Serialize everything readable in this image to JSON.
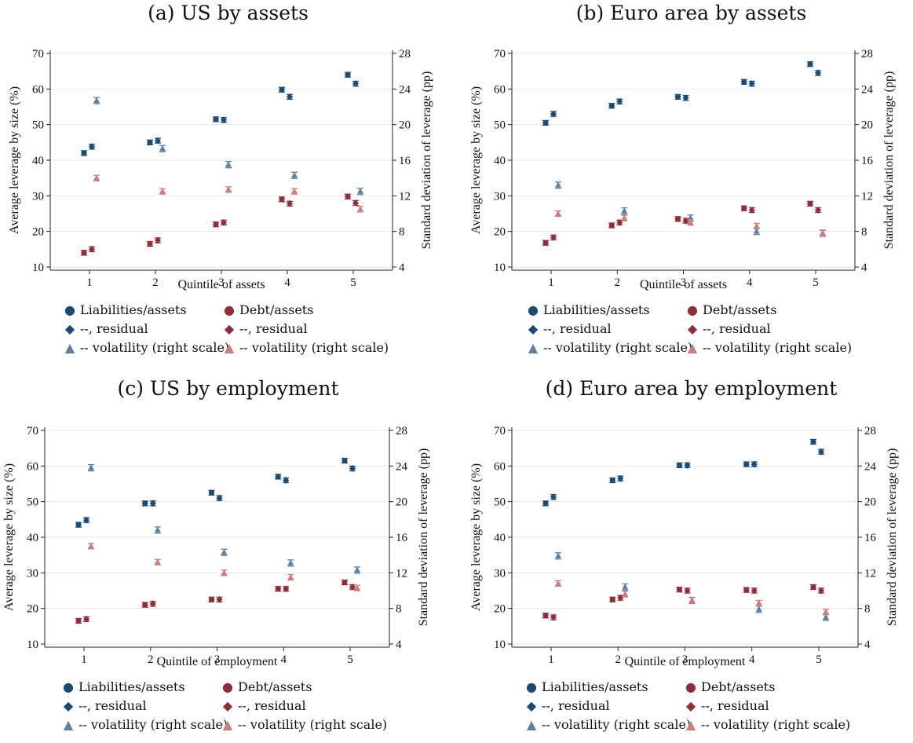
{
  "colors": {
    "liabilities": "#1c4a73",
    "debt": "#8f2d38",
    "liabilities_vol": "#5f7ea0",
    "debt_vol": "#cc7e7e"
  },
  "legend": {
    "liab": "Liabilities/assets",
    "debt": "Debt/assets",
    "liab_res": "--, residual",
    "debt_res": "--, residual",
    "liab_vol": "-- volatility (right scale)",
    "debt_vol": "-- volatility (right scale)"
  },
  "chart_data": [
    {
      "type": "scatter",
      "title": "(a) US by assets",
      "xlabel": "Quintile of assets",
      "ylabel": "Average leverage by size (%)",
      "y2label": "Standard deviation of leverage (pp)",
      "x": [
        1,
        2,
        3,
        4,
        5
      ],
      "ylim": [
        10,
        70
      ],
      "yticks": [
        10,
        20,
        30,
        40,
        50,
        60,
        70
      ],
      "y2lim": [
        4,
        28
      ],
      "y2ticks": [
        4,
        8,
        12,
        16,
        20,
        24,
        28
      ],
      "grid": true,
      "legend_placement": "below",
      "series": [
        {
          "name": "Liabilities/assets",
          "axis": "left",
          "values": [
            42.0,
            45.0,
            51.5,
            59.8,
            64.0
          ]
        },
        {
          "name": "--, residual",
          "axis": "left",
          "values": [
            43.8,
            45.5,
            51.3,
            57.8,
            61.5
          ]
        },
        {
          "name": "-- volatility (right scale)",
          "axis": "right",
          "values": [
            22.7,
            17.3,
            15.5,
            14.3,
            12.5
          ]
        },
        {
          "name": "Debt/assets",
          "axis": "left",
          "values": [
            14.0,
            16.5,
            22.0,
            29.0,
            29.8
          ]
        },
        {
          "name": "--, residual",
          "axis": "left",
          "values": [
            15.0,
            17.5,
            22.5,
            27.8,
            28.0
          ]
        },
        {
          "name": "-- volatility (right scale)",
          "axis": "right",
          "values": [
            14.0,
            12.5,
            12.7,
            12.5,
            10.5
          ]
        }
      ]
    },
    {
      "type": "scatter",
      "title": "(b) Euro area by assets",
      "xlabel": "Quintile of assets",
      "ylabel": "Average leverage by size (%)",
      "y2label": "Standard deviation of leverage (pp)",
      "x": [
        1,
        2,
        3,
        4,
        5
      ],
      "ylim": [
        10,
        70
      ],
      "yticks": [
        10,
        20,
        30,
        40,
        50,
        60,
        70
      ],
      "y2lim": [
        4,
        28
      ],
      "y2ticks": [
        4,
        8,
        12,
        16,
        20,
        24,
        28
      ],
      "grid": true,
      "legend_placement": "below",
      "series": [
        {
          "name": "Liabilities/assets",
          "axis": "left",
          "values": [
            50.5,
            55.3,
            57.8,
            62.0,
            67.0
          ]
        },
        {
          "name": "--, residual",
          "axis": "left",
          "values": [
            53.0,
            56.5,
            57.5,
            61.5,
            64.5
          ]
        },
        {
          "name": "-- volatility (right scale)",
          "axis": "right",
          "values": [
            13.2,
            10.3,
            9.5,
            8.0,
            7.8
          ]
        },
        {
          "name": "Debt/assets",
          "axis": "left",
          "values": [
            16.8,
            21.7,
            23.5,
            26.5,
            27.8
          ]
        },
        {
          "name": "--, residual",
          "axis": "left",
          "values": [
            18.3,
            22.5,
            23.0,
            26.0,
            26.0
          ]
        },
        {
          "name": "-- volatility (right scale)",
          "axis": "right",
          "values": [
            10.0,
            9.5,
            9.0,
            8.6,
            7.8
          ]
        }
      ]
    },
    {
      "type": "scatter",
      "title": "(c) US by employment",
      "xlabel": "Quintile of employment",
      "ylabel": "Average leverage by size (%)",
      "y2label": "Standard deviation of leverage (pp)",
      "x": [
        1,
        2,
        3,
        4,
        5
      ],
      "ylim": [
        10,
        70
      ],
      "yticks": [
        10,
        20,
        30,
        40,
        50,
        60,
        70
      ],
      "y2lim": [
        4,
        28
      ],
      "y2ticks": [
        4,
        8,
        12,
        16,
        20,
        24,
        28
      ],
      "grid": true,
      "legend_placement": "below",
      "series": [
        {
          "name": "Liabilities/assets",
          "axis": "left",
          "values": [
            43.5,
            49.5,
            52.5,
            57.0,
            61.5
          ]
        },
        {
          "name": "--, residual",
          "axis": "left",
          "values": [
            44.8,
            49.5,
            51.0,
            56.0,
            59.3
          ]
        },
        {
          "name": "-- volatility (right scale)",
          "axis": "right",
          "values": [
            23.8,
            16.8,
            14.3,
            13.1,
            12.3
          ]
        },
        {
          "name": "Debt/assets",
          "axis": "left",
          "values": [
            16.5,
            21.0,
            22.5,
            25.5,
            27.3
          ]
        },
        {
          "name": "--, residual",
          "axis": "left",
          "values": [
            17.0,
            21.3,
            22.5,
            25.5,
            26.0
          ]
        },
        {
          "name": "-- volatility (right scale)",
          "axis": "right",
          "values": [
            15.0,
            13.2,
            12.0,
            11.5,
            10.3
          ]
        }
      ]
    },
    {
      "type": "scatter",
      "title": "(d) Euro area by employment",
      "xlabel": "Quintile of employment",
      "ylabel": "Average leverage by size (%)",
      "y2label": "Standard deviation of leverage (pp)",
      "x": [
        1,
        2,
        3,
        4,
        5
      ],
      "ylim": [
        10,
        70
      ],
      "yticks": [
        10,
        20,
        30,
        40,
        50,
        60,
        70
      ],
      "y2lim": [
        4,
        28
      ],
      "y2ticks": [
        4,
        8,
        12,
        16,
        20,
        24,
        28
      ],
      "grid": true,
      "legend_placement": "below",
      "series": [
        {
          "name": "Liabilities/assets",
          "axis": "left",
          "values": [
            49.5,
            56.0,
            60.2,
            60.5,
            66.8
          ]
        },
        {
          "name": "--, residual",
          "axis": "left",
          "values": [
            51.3,
            56.5,
            60.2,
            60.5,
            64.0
          ]
        },
        {
          "name": "-- volatility (right scale)",
          "axis": "right",
          "values": [
            13.9,
            10.4,
            8.9,
            7.9,
            7.0
          ]
        },
        {
          "name": "Debt/assets",
          "axis": "left",
          "values": [
            18.0,
            22.5,
            25.3,
            25.2,
            26.0
          ]
        },
        {
          "name": "--, residual",
          "axis": "left",
          "values": [
            17.5,
            23.0,
            25.0,
            25.0,
            25.0
          ]
        },
        {
          "name": "-- volatility (right scale)",
          "axis": "right",
          "values": [
            10.8,
            9.6,
            8.9,
            8.6,
            7.6
          ]
        }
      ]
    }
  ]
}
